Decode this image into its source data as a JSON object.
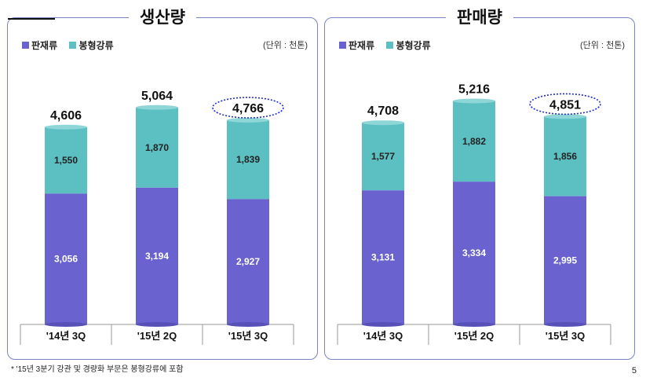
{
  "chart_data": [
    {
      "type": "bar",
      "title": "생산량",
      "unit_label": "(단위 : 천톤)",
      "categories": [
        "'14년 3Q",
        "'15년 2Q",
        "'15년 3Q"
      ],
      "series": [
        {
          "name": "판재류",
          "values": [
            3056,
            3194,
            2927
          ],
          "color": "#6a63cf"
        },
        {
          "name": "봉형강류",
          "values": [
            1550,
            1870,
            1839
          ],
          "color": "#5cc0c3"
        }
      ],
      "totals": [
        4606,
        5064,
        4766
      ],
      "highlighted_total_index": 2,
      "ylim": [
        0,
        5500
      ],
      "grid": false,
      "legend": "top-left"
    },
    {
      "type": "bar",
      "title": "판매량",
      "unit_label": "(단위 : 천톤)",
      "categories": [
        "'14년 3Q",
        "'15년 2Q",
        "'15년 3Q"
      ],
      "series": [
        {
          "name": "판재류",
          "values": [
            3131,
            3334,
            2995
          ],
          "color": "#6a63cf"
        },
        {
          "name": "봉형강류",
          "values": [
            1577,
            1882,
            1856
          ],
          "color": "#5cc0c3"
        }
      ],
      "totals": [
        4708,
        5216,
        4851
      ],
      "highlighted_total_index": 2,
      "ylim": [
        0,
        5500
      ],
      "grid": false,
      "legend": "top-left"
    }
  ],
  "footnote": "* '15년 3분기 강관 및 경량화 부문은 봉형강류에 포함",
  "page_number": "5"
}
